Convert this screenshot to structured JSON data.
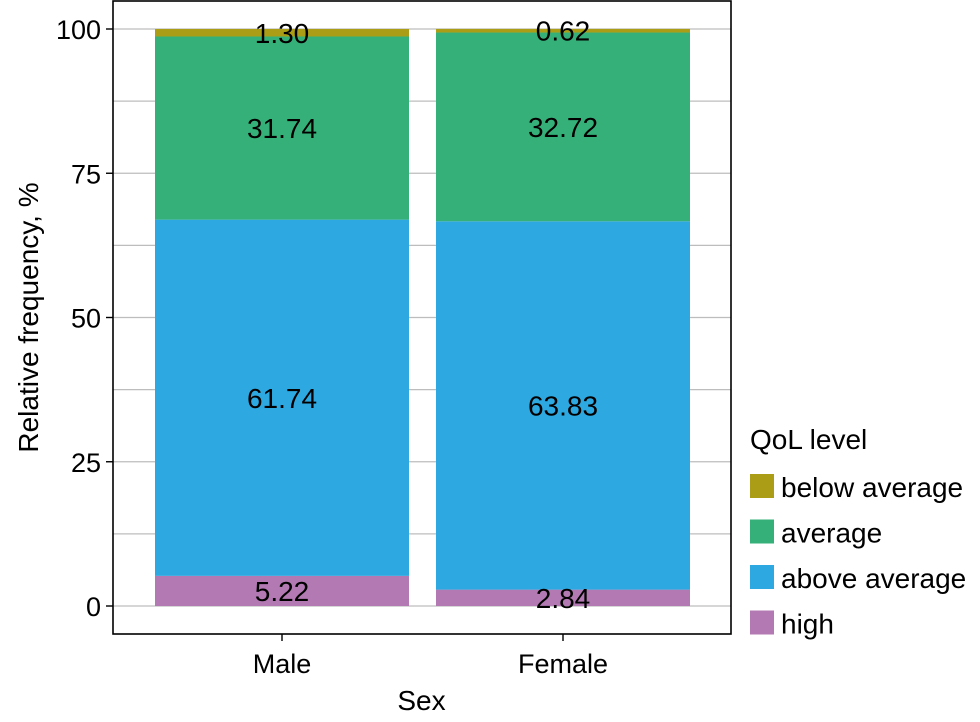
{
  "chart_data": {
    "type": "bar",
    "stacked": true,
    "title": "",
    "xlabel": "Sex",
    "ylabel": "Relative frequency, %",
    "ylim": [
      -5,
      105
    ],
    "yticks": [
      0,
      25,
      50,
      75,
      100
    ],
    "ytick_labels": [
      "0",
      "25",
      "50",
      "75",
      "100"
    ],
    "grid": true,
    "categories": [
      "Male",
      "Female"
    ],
    "legend": {
      "title": "QoL level",
      "placement": "right",
      "entries": [
        "below average",
        "average",
        "above average",
        "high"
      ]
    },
    "series": [
      {
        "name": "high",
        "color": "#B279B2",
        "values": [
          5.22,
          2.84
        ],
        "labels": [
          "5.22",
          "2.84"
        ]
      },
      {
        "name": "above average",
        "color": "#2DA8E1",
        "values": [
          61.74,
          63.83
        ],
        "labels": [
          "61.74",
          "63.83"
        ]
      },
      {
        "name": "average",
        "color": "#35B079",
        "values": [
          31.74,
          32.72
        ],
        "labels": [
          "31.74",
          "32.72"
        ]
      },
      {
        "name": "below average",
        "color": "#AB9E16",
        "values": [
          1.3,
          0.62
        ],
        "labels": [
          "1.30",
          "0.62"
        ]
      }
    ]
  }
}
